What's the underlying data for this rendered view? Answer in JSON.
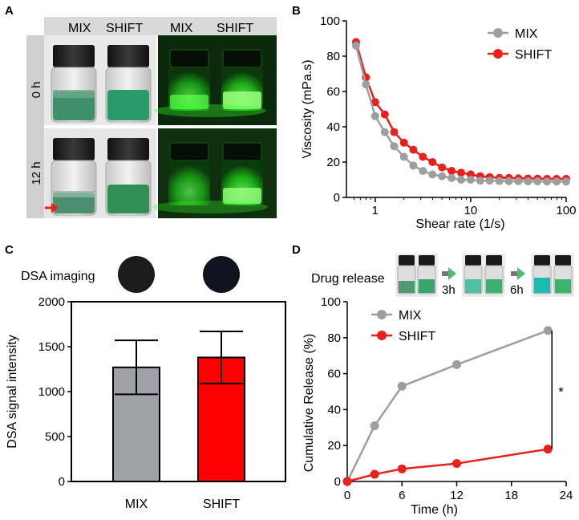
{
  "figure": {
    "panels": {
      "A": {
        "label": "A",
        "header_left": [
          "MIX",
          "SHIFT"
        ],
        "header_right": [
          "MIX",
          "SHIFT"
        ],
        "rows": [
          "0 h",
          "12 h"
        ],
        "colors": {
          "header_bg": "#d9d9d9",
          "row_bg": "#cfcfcf",
          "arrow": "#e8211c",
          "glow": "#29e62e"
        }
      },
      "B": {
        "label": "B"
      },
      "C": {
        "label": "C",
        "imaging_label": "DSA imaging"
      },
      "D": {
        "label": "D",
        "release_label": "Drug release",
        "steps": [
          "3h",
          "6h"
        ],
        "significance": "*"
      }
    }
  },
  "chart_data": [
    {
      "panel": "B",
      "type": "line",
      "xlabel": "Shear rate (1/s)",
      "ylabel": "Viscosity (mPa.s)",
      "xscale": "log",
      "xlim": [
        0.5,
        100
      ],
      "ylim": [
        0,
        100
      ],
      "xticks": [
        1,
        10,
        100
      ],
      "xtick_labels": [
        "1",
        "10",
        "100"
      ],
      "yticks": [
        0,
        20,
        40,
        60,
        80,
        100
      ],
      "legend_position": "top-right",
      "x": [
        0.63,
        0.8,
        1.0,
        1.26,
        1.58,
        2.0,
        2.51,
        3.16,
        3.98,
        5.01,
        6.31,
        7.94,
        10,
        12.6,
        15.8,
        20,
        25.1,
        31.6,
        39.8,
        50.1,
        63.1,
        79.4,
        100
      ],
      "series": [
        {
          "name": "MIX",
          "color": "#9e9e9e",
          "values": [
            86,
            64,
            46,
            37,
            29,
            23,
            18,
            15,
            13,
            12,
            11,
            10,
            10,
            9.5,
            9.5,
            9.3,
            9.2,
            9.2,
            9.1,
            9.1,
            9.0,
            9.0,
            9.0
          ]
        },
        {
          "name": "SHIFT",
          "color": "#e8211c",
          "values": [
            88,
            68,
            54,
            47,
            37,
            31,
            27,
            23,
            20,
            17,
            15,
            14,
            13,
            12,
            11.5,
            11,
            11,
            10.8,
            10.7,
            10.6,
            10.5,
            10.5,
            10.5
          ]
        }
      ]
    },
    {
      "panel": "C",
      "type": "bar",
      "categories": [
        "MIX",
        "SHIFT"
      ],
      "values": [
        1270,
        1380
      ],
      "errors": [
        300,
        290
      ],
      "colors": [
        "#a0a0a8",
        "#ff0000"
      ],
      "ylabel": "DSA signal intensity",
      "ylim": [
        0,
        2000
      ],
      "yticks": [
        0,
        500,
        1000,
        1500,
        2000
      ]
    },
    {
      "panel": "D",
      "type": "line",
      "xlabel": "Time (h)",
      "ylabel": "Cumulative Release (%)",
      "xlim": [
        0,
        24
      ],
      "ylim": [
        0,
        100
      ],
      "xticks": [
        0,
        6,
        12,
        18,
        24
      ],
      "yticks": [
        0,
        20,
        40,
        60,
        80,
        100
      ],
      "legend_position": "top-left",
      "series": [
        {
          "name": "MIX",
          "color": "#9e9e9e",
          "x": [
            0,
            3,
            6,
            12,
            22
          ],
          "values": [
            0,
            31,
            53,
            65,
            84
          ]
        },
        {
          "name": "SHIFT",
          "color": "#e8211c",
          "x": [
            0,
            3,
            6,
            12,
            22
          ],
          "values": [
            0,
            4,
            7,
            10,
            18
          ]
        }
      ]
    }
  ]
}
